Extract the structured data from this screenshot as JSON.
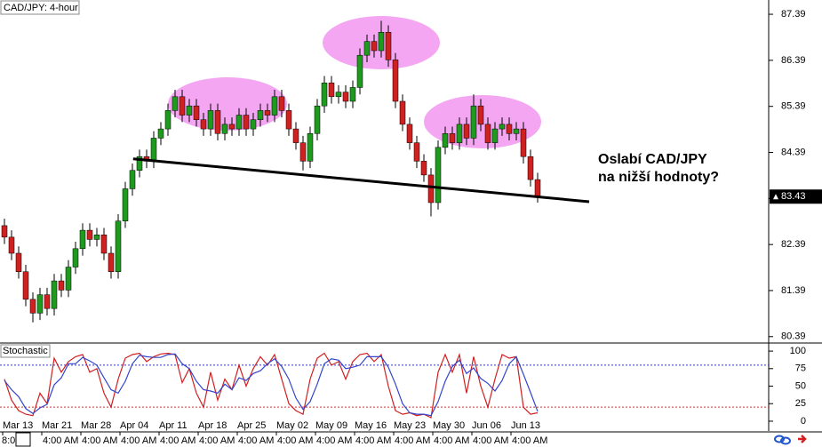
{
  "chart_data": [
    {
      "type": "candlestick",
      "title": "CAD/JPY: 4-hour",
      "xlim": [
        -0.625,
        107.5
      ],
      "ylim": [
        80.27,
        87.7
      ],
      "yticks": [
        80.39,
        81.39,
        82.39,
        83.39,
        84.39,
        85.39,
        86.39,
        87.39
      ],
      "up_color": "#1e9a1e",
      "down_color": "#d02020",
      "wick_color": "#000000",
      "last_price": 83.43,
      "open": [
        82.8,
        82.55,
        82.2,
        81.8,
        81.2,
        80.9,
        81.3,
        81.0,
        81.6,
        81.4,
        81.9,
        82.3,
        82.7,
        82.5,
        82.6,
        82.2,
        81.8,
        82.9,
        83.6,
        84.0,
        84.3,
        84.2,
        84.7,
        84.9,
        85.3,
        85.6,
        85.2,
        85.4,
        85.1,
        84.9,
        85.3,
        84.8,
        85.0,
        84.9,
        85.2,
        84.9,
        85.1,
        85.3,
        85.2,
        85.6,
        85.3,
        84.9,
        84.6,
        84.2,
        84.8,
        85.4,
        85.9,
        85.6,
        85.7,
        85.5,
        85.8,
        86.5,
        86.8,
        86.6,
        87.0,
        86.4,
        85.5,
        85.0,
        84.6,
        84.2,
        83.9,
        83.3,
        84.5,
        84.8,
        84.6,
        85.0,
        84.7,
        85.4,
        85.0,
        84.6,
        84.9,
        85.0,
        84.8,
        84.9,
        84.3,
        83.8
      ],
      "high": [
        82.95,
        82.7,
        82.35,
        81.95,
        81.35,
        81.45,
        81.45,
        81.75,
        81.75,
        82.05,
        82.45,
        82.85,
        82.85,
        82.75,
        82.75,
        82.35,
        83.05,
        83.75,
        84.15,
        84.45,
        84.45,
        84.85,
        85.05,
        85.45,
        85.75,
        85.75,
        85.55,
        85.55,
        85.25,
        85.45,
        85.45,
        85.15,
        85.15,
        85.35,
        85.35,
        85.25,
        85.45,
        85.45,
        85.75,
        85.75,
        85.45,
        85.05,
        84.75,
        84.95,
        85.55,
        86.05,
        86.05,
        85.85,
        85.85,
        85.95,
        86.65,
        86.95,
        86.95,
        87.25,
        87.15,
        86.55,
        85.65,
        85.15,
        84.75,
        84.35,
        84.05,
        84.65,
        84.95,
        84.95,
        85.15,
        85.15,
        85.65,
        85.55,
        85.15,
        85.05,
        85.15,
        85.15,
        85.05,
        85.05,
        84.45,
        83.95
      ],
      "low": [
        82.4,
        82.05,
        81.65,
        81.05,
        80.7,
        80.75,
        80.85,
        80.85,
        81.25,
        81.25,
        81.75,
        82.15,
        82.35,
        82.35,
        82.05,
        81.65,
        81.65,
        82.75,
        83.45,
        83.85,
        84.05,
        84.05,
        84.55,
        84.75,
        85.15,
        85.05,
        85.05,
        84.95,
        84.75,
        84.75,
        84.65,
        84.65,
        84.75,
        84.75,
        84.75,
        84.75,
        84.95,
        85.05,
        85.05,
        85.15,
        84.75,
        84.45,
        84.0,
        84.05,
        84.65,
        85.25,
        85.45,
        85.45,
        85.35,
        85.35,
        85.65,
        86.35,
        86.45,
        86.45,
        86.25,
        85.35,
        84.85,
        84.45,
        84.05,
        83.75,
        83.0,
        83.15,
        84.35,
        84.45,
        84.45,
        84.55,
        84.55,
        84.85,
        84.45,
        84.45,
        84.75,
        84.65,
        84.65,
        84.15,
        83.65,
        83.3
      ],
      "close": [
        82.55,
        82.2,
        81.8,
        81.2,
        80.9,
        81.3,
        81.0,
        81.6,
        81.4,
        81.9,
        82.3,
        82.7,
        82.5,
        82.6,
        82.2,
        81.8,
        82.9,
        83.6,
        84.0,
        84.3,
        84.2,
        84.7,
        84.9,
        85.3,
        85.6,
        85.2,
        85.4,
        85.1,
        84.9,
        85.3,
        84.8,
        85.0,
        84.9,
        85.2,
        84.9,
        85.1,
        85.3,
        85.2,
        85.6,
        85.3,
        84.9,
        84.6,
        84.2,
        84.8,
        85.4,
        85.9,
        85.6,
        85.7,
        85.5,
        85.8,
        86.5,
        86.8,
        86.6,
        87.0,
        86.4,
        85.5,
        85.0,
        84.6,
        84.2,
        83.9,
        83.3,
        84.5,
        84.8,
        84.6,
        85.0,
        84.7,
        85.4,
        85.0,
        84.6,
        84.9,
        85.0,
        84.8,
        84.9,
        84.3,
        83.8,
        83.43
      ],
      "trendline": {
        "x": [
          18.1,
          82.25
        ],
        "y": [
          84.25,
          83.32
        ],
        "color": "#000000"
      },
      "annotation": [
        "Oslabí CAD/JPY",
        "na nižší hodnoty?"
      ]
    },
    {
      "type": "line",
      "title": "Stochastic",
      "xlim": [
        -0.625,
        107.5
      ],
      "ylim": [
        -14,
        109
      ],
      "yticks": [
        0,
        25,
        50,
        75,
        100
      ],
      "levels": [
        {
          "value": 80,
          "color": "#3333cc"
        },
        {
          "value": 20,
          "color": "#cc3333"
        }
      ],
      "series": [
        {
          "color": "#d02020",
          "values": [
            60,
            30,
            15,
            10,
            8,
            40,
            25,
            90,
            70,
            85,
            92,
            95,
            70,
            75,
            40,
            20,
            60,
            90,
            95,
            97,
            85,
            92,
            96,
            97,
            95,
            55,
            75,
            40,
            20,
            70,
            30,
            60,
            45,
            80,
            50,
            75,
            92,
            80,
            95,
            60,
            25,
            15,
            10,
            60,
            90,
            97,
            80,
            85,
            60,
            85,
            95,
            97,
            85,
            95,
            50,
            15,
            10,
            12,
            8,
            10,
            5,
            70,
            95,
            70,
            95,
            40,
            92,
            50,
            20,
            60,
            95,
            90,
            92,
            20,
            10,
            12
          ]
        },
        {
          "color": "#3344cc",
          "values": [
            58,
            45,
            35,
            18,
            11,
            19,
            24,
            52,
            62,
            82,
            82,
            91,
            86,
            80,
            62,
            45,
            40,
            57,
            82,
            94,
            92,
            91,
            91,
            95,
            96,
            82,
            75,
            57,
            45,
            43,
            40,
            53,
            45,
            62,
            58,
            68,
            72,
            82,
            89,
            78,
            60,
            33,
            17,
            28,
            53,
            82,
            89,
            87,
            75,
            77,
            80,
            92,
            92,
            92,
            77,
            53,
            25,
            12,
            10,
            10,
            8,
            28,
            57,
            78,
            87,
            68,
            76,
            61,
            54,
            43,
            58,
            82,
            92,
            67,
            41,
            14
          ]
        }
      ],
      "xticks": [
        {
          "value": -0.25,
          "label": "Mar 13"
        },
        {
          "value": 5.25,
          "label": "Mar 21"
        },
        {
          "value": 10.75,
          "label": "Mar 28"
        },
        {
          "value": 16.25,
          "label": "Apr 04"
        },
        {
          "value": 21.75,
          "label": "Apr 11"
        },
        {
          "value": 27.25,
          "label": "Apr 18"
        },
        {
          "value": 32.75,
          "label": "Apr 25"
        },
        {
          "value": 38.25,
          "label": "May 02"
        },
        {
          "value": 43.75,
          "label": "May 09"
        },
        {
          "value": 49.25,
          "label": "May 16"
        },
        {
          "value": 54.75,
          "label": "May 23"
        },
        {
          "value": 60.25,
          "label": "May 30"
        },
        {
          "value": 65.75,
          "label": "Jun 06"
        },
        {
          "value": 71.25,
          "label": "Jun 13"
        }
      ],
      "time_labels": [
        "8:0",
        "4:00 AM",
        "4:00 AM",
        "4:00 AM",
        "4:00 AM",
        "4:00 AM",
        "4:00 AM",
        "4:00 AM",
        "4:00 AM",
        "4:00 AM",
        "4:00 AM",
        "4:00 AM",
        "4:00 AM",
        "4:00 AM"
      ]
    }
  ]
}
